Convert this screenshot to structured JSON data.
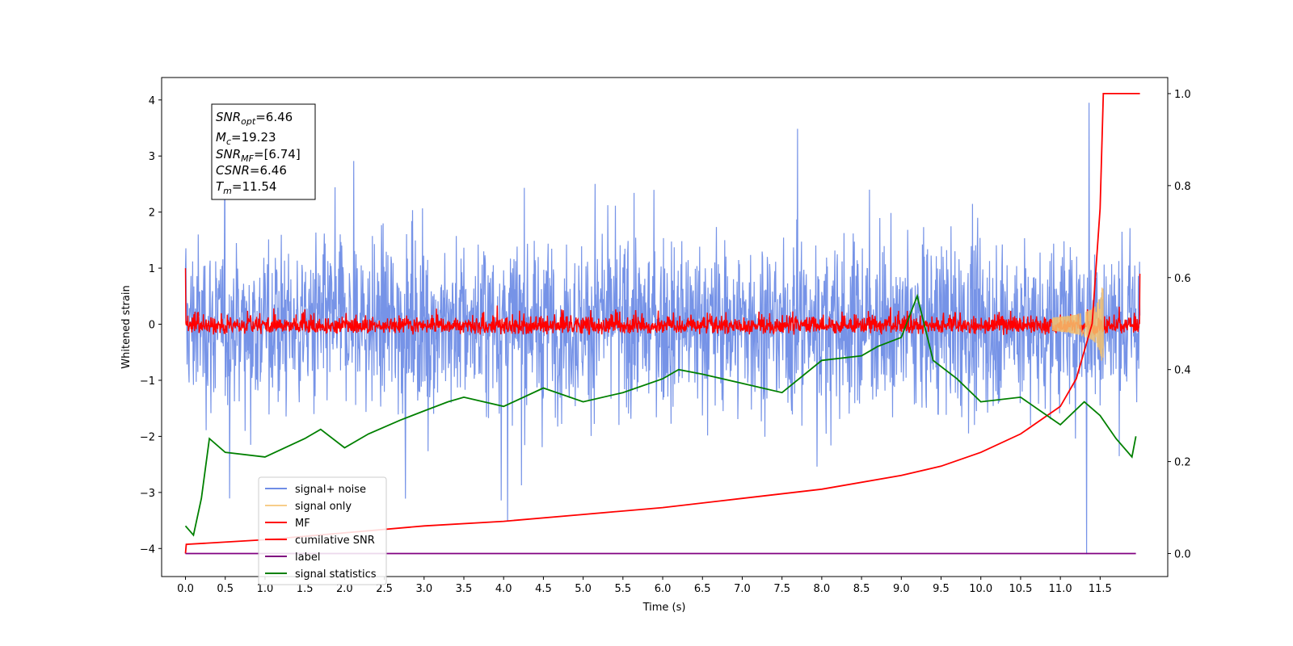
{
  "chart_data": {
    "type": "line",
    "xlabel": "Time (s)",
    "ylabel": "Whitened strain",
    "xlim": [
      -0.3,
      12.35
    ],
    "ylim": [
      -4.5,
      4.4
    ],
    "y2lim": [
      -0.05,
      1.035
    ],
    "x_ticks": [
      "0.0",
      "0.5",
      "1.0",
      "1.5",
      "2.0",
      "2.5",
      "3.0",
      "3.5",
      "4.0",
      "4.5",
      "5.0",
      "5.5",
      "6.0",
      "6.5",
      "7.0",
      "7.5",
      "8.0",
      "8.5",
      "9.0",
      "9.5",
      "10.0",
      "10.5",
      "11.0",
      "11.5"
    ],
    "y_ticks": [
      "4",
      "3",
      "2",
      "1",
      "0",
      "−1",
      "−2",
      "−3",
      "−4"
    ],
    "y2_ticks": [
      "1.0",
      "0.8",
      "0.6",
      "0.4",
      "0.2",
      "0.0"
    ],
    "legend_position": "lower-left",
    "info_box": {
      "snr_opt": {
        "sym": "SNR",
        "sub": "opt",
        "value": "=6.46"
      },
      "mc": {
        "sym": "M",
        "sub": "c",
        "value": "=19.23"
      },
      "snr_mf": {
        "sym": "SNR",
        "sub": "MF",
        "value": "=[6.74]"
      },
      "csnr": {
        "sym": "CSNR",
        "sub": "",
        "value": "=6.46"
      },
      "tm": {
        "sym": "T",
        "sub": "m",
        "value": "=11.54"
      }
    },
    "series": [
      {
        "name": "signal+ noise",
        "color": "#6f8de6",
        "axis": "left",
        "description_values": {
          "approx_range": [
            -4.1,
            4.0
          ]
        }
      },
      {
        "name": "signal only",
        "color": "#f5c16c",
        "axis": "left",
        "description_values": {
          "peak_time": 11.54,
          "peak_amplitude": 1.0
        }
      },
      {
        "name": "MF",
        "color": "#ff0000",
        "axis": "left",
        "description_values": {
          "approx_range": [
            -0.2,
            0.5
          ]
        }
      },
      {
        "name": "cumilative SNR",
        "color": "#ff0000",
        "axis": "right",
        "x": [
          0.0,
          0.01,
          1.0,
          2.0,
          3.0,
          4.0,
          5.0,
          6.0,
          7.0,
          8.0,
          9.0,
          9.5,
          10.0,
          10.5,
          11.0,
          11.2,
          11.4,
          11.5,
          11.54,
          12.0
        ],
        "values": [
          0.0,
          0.02,
          0.03,
          0.045,
          0.06,
          0.07,
          0.085,
          0.1,
          0.12,
          0.14,
          0.17,
          0.19,
          0.22,
          0.26,
          0.32,
          0.38,
          0.5,
          0.75,
          1.0,
          1.0
        ]
      },
      {
        "name": "label",
        "color": "#800080",
        "axis": "right",
        "x": [
          0.0,
          11.95
        ],
        "values": [
          0.0,
          0.0
        ]
      },
      {
        "name": "signal statistics",
        "color": "#008000",
        "axis": "right",
        "x": [
          0.0,
          0.1,
          0.2,
          0.3,
          0.5,
          1.0,
          1.5,
          1.7,
          2.0,
          2.3,
          2.7,
          3.0,
          3.3,
          3.5,
          4.0,
          4.5,
          5.0,
          5.5,
          6.0,
          6.2,
          6.5,
          7.0,
          7.5,
          8.0,
          8.5,
          8.7,
          9.0,
          9.2,
          9.4,
          9.7,
          10.0,
          10.5,
          11.0,
          11.3,
          11.5,
          11.7,
          11.9,
          11.95
        ],
        "values": [
          0.06,
          0.04,
          0.12,
          0.25,
          0.22,
          0.21,
          0.25,
          0.27,
          0.23,
          0.26,
          0.29,
          0.31,
          0.33,
          0.34,
          0.32,
          0.36,
          0.33,
          0.35,
          0.38,
          0.4,
          0.39,
          0.37,
          0.35,
          0.42,
          0.43,
          0.45,
          0.47,
          0.56,
          0.42,
          0.38,
          0.33,
          0.34,
          0.28,
          0.33,
          0.3,
          0.25,
          0.21,
          0.255
        ]
      }
    ]
  }
}
